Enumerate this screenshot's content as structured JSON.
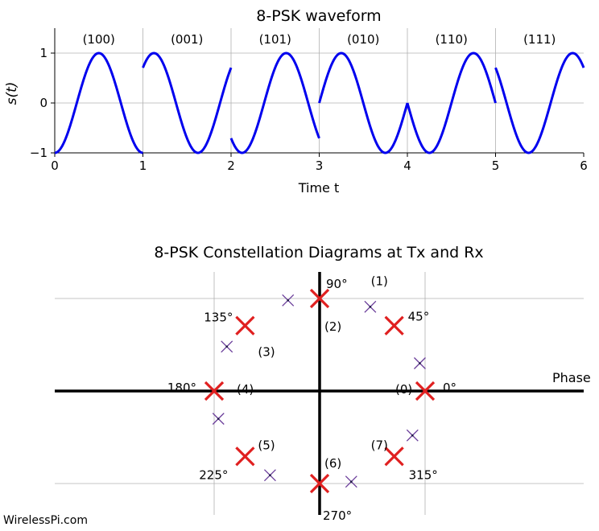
{
  "chart_data": [
    {
      "type": "line",
      "title": "8-PSK waveform",
      "xlabel": "Time t",
      "ylabel": "s(t)",
      "xlim": [
        0,
        6
      ],
      "ylim": [
        -1,
        1.5
      ],
      "xticks": [
        "0",
        "1",
        "2",
        "3",
        "4",
        "5",
        "6"
      ],
      "yticks": [
        "−1",
        "0",
        "1"
      ],
      "grid": true,
      "line_color": "#0000ee",
      "symbols": [
        {
          "bits": "(100)",
          "phase_deg": 180,
          "t_start": 0,
          "t_end": 1
        },
        {
          "bits": "(001)",
          "phase_deg": 45,
          "t_start": 1,
          "t_end": 2
        },
        {
          "bits": "(101)",
          "phase_deg": 225,
          "t_start": 2,
          "t_end": 3
        },
        {
          "bits": "(010)",
          "phase_deg": 90,
          "t_start": 3,
          "t_end": 4
        },
        {
          "bits": "(110)",
          "phase_deg": 270,
          "t_start": 4,
          "t_end": 5
        },
        {
          "bits": "(111)",
          "phase_deg": 315,
          "t_start": 5,
          "t_end": 6
        }
      ],
      "signal": "s(t) = cos(2π t − phase) within each symbol interval"
    },
    {
      "type": "scatter",
      "title": "8-PSK Constellation Diagrams at Tx and Rx",
      "xlabel": "Phase",
      "xlim": [
        -1.25,
        1.25
      ],
      "ylim": [
        -1.2,
        1.2
      ],
      "grid": true,
      "tx_color": "#e02020",
      "rx_color": "#6a3d9a",
      "tx_points": [
        {
          "index": "(0)",
          "angle": "0°",
          "x": 1.0,
          "y": 0.0
        },
        {
          "index": "(1)",
          "angle": "45°",
          "x": 0.707,
          "y": 0.707
        },
        {
          "index": "(2)",
          "angle": "90°",
          "x": 0.0,
          "y": 1.0
        },
        {
          "index": "(3)",
          "angle": "135°",
          "x": -0.707,
          "y": 0.707
        },
        {
          "index": "(4)",
          "angle": "180°",
          "x": -1.0,
          "y": 0.0
        },
        {
          "index": "(5)",
          "angle": "225°",
          "x": -0.707,
          "y": -0.707
        },
        {
          "index": "(6)",
          "angle": "270°",
          "x": 0.0,
          "y": -1.0
        },
        {
          "index": "(7)",
          "angle": "315°",
          "x": 0.707,
          "y": -0.707
        }
      ],
      "rx_points": [
        {
          "x": 0.48,
          "y": 0.91
        },
        {
          "x": 0.95,
          "y": 0.3
        },
        {
          "x": 0.88,
          "y": -0.48
        },
        {
          "x": 0.3,
          "y": -0.98
        },
        {
          "x": -0.47,
          "y": -0.91
        },
        {
          "x": -0.96,
          "y": -0.3
        },
        {
          "x": -0.88,
          "y": 0.48
        },
        {
          "x": -0.3,
          "y": 0.98
        }
      ]
    }
  ],
  "watermark": "WirelessPi.com"
}
